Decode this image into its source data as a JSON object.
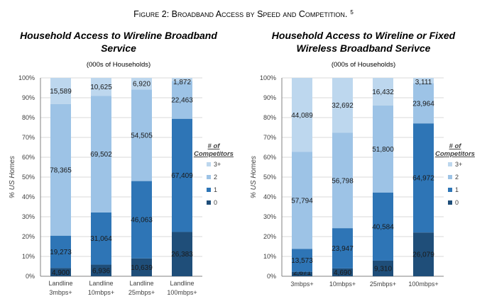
{
  "figure_title": "Figure 2: Broadband Access by Speed and Competition.",
  "footnote_marker": "5",
  "chart_data": [
    {
      "type": "bar",
      "stacked": true,
      "normalized": true,
      "title_lines": [
        "Household Access to Wireline Broadband",
        "Service"
      ],
      "subtitle": "(000s of Households)",
      "ylabel": "% US Homes",
      "ylim": [
        0,
        100
      ],
      "yticks": [
        "0%",
        "10%",
        "20%",
        "30%",
        "40%",
        "50%",
        "60%",
        "70%",
        "80%",
        "90%",
        "100%"
      ],
      "categories": [
        [
          "Landline",
          "3mbps+"
        ],
        [
          "Landline",
          "10mbps+"
        ],
        [
          "Landline",
          "25mbps+"
        ],
        [
          "Landline",
          "100mbps+"
        ]
      ],
      "legend_title_lines": [
        "# of",
        "Competitors"
      ],
      "legend_placement": "right",
      "series": [
        {
          "name": "0",
          "color": "#1f4e79",
          "values": [
            4900,
            6936,
            10639,
            26383
          ],
          "labels": [
            "4,900",
            "6,936",
            "10,639",
            "26,383"
          ]
        },
        {
          "name": "1",
          "color": "#2e75b6",
          "values": [
            19273,
            31064,
            46063,
            67409
          ],
          "labels": [
            "19,273",
            "31,064",
            "46,063",
            "67,409"
          ]
        },
        {
          "name": "2",
          "color": "#9dc3e6",
          "values": [
            78365,
            69502,
            54505,
            22463
          ],
          "labels": [
            "78,365",
            "69,502",
            "54,505",
            "22,463"
          ]
        },
        {
          "name": "3+",
          "color": "#bdd7ee",
          "values": [
            15589,
            10625,
            6920,
            1872
          ],
          "labels": [
            "15,589",
            "10,625",
            "6,920",
            "1,872"
          ]
        }
      ]
    },
    {
      "type": "bar",
      "stacked": true,
      "normalized": true,
      "title_lines": [
        "Household Access to Wireline or Fixed",
        "Wireless Broadband Serivce"
      ],
      "subtitle": "(000s of Households)",
      "ylabel": "% US Homes",
      "ylim": [
        0,
        100
      ],
      "yticks": [
        "0%",
        "10%",
        "20%",
        "30%",
        "40%",
        "50%",
        "60%",
        "70%",
        "80%",
        "90%",
        "100%"
      ],
      "categories": [
        [
          "3mbps+"
        ],
        [
          "10mbps+"
        ],
        [
          "25mbps+"
        ],
        [
          "100mbps+"
        ]
      ],
      "legend_title_lines": [
        "# of",
        "Competitors"
      ],
      "legend_placement": "right",
      "series": [
        {
          "name": "0",
          "color": "#1f4e79",
          "values": [
            2671,
            4690,
            9310,
            26079
          ],
          "labels": [
            "2,671",
            "4,690",
            "9,310",
            "26,079"
          ]
        },
        {
          "name": "1",
          "color": "#2e75b6",
          "values": [
            13573,
            23947,
            40584,
            64972
          ],
          "labels": [
            "13,573",
            "23,947",
            "40,584",
            "64,972"
          ]
        },
        {
          "name": "2",
          "color": "#9dc3e6",
          "values": [
            57794,
            56798,
            51800,
            23964
          ],
          "labels": [
            "57,794",
            "56,798",
            "51,800",
            "23,964"
          ]
        },
        {
          "name": "3+",
          "color": "#bdd7ee",
          "values": [
            44089,
            32692,
            16432,
            3111
          ],
          "labels": [
            "44,089",
            "32,692",
            "16,432",
            "3,111"
          ]
        }
      ]
    }
  ]
}
